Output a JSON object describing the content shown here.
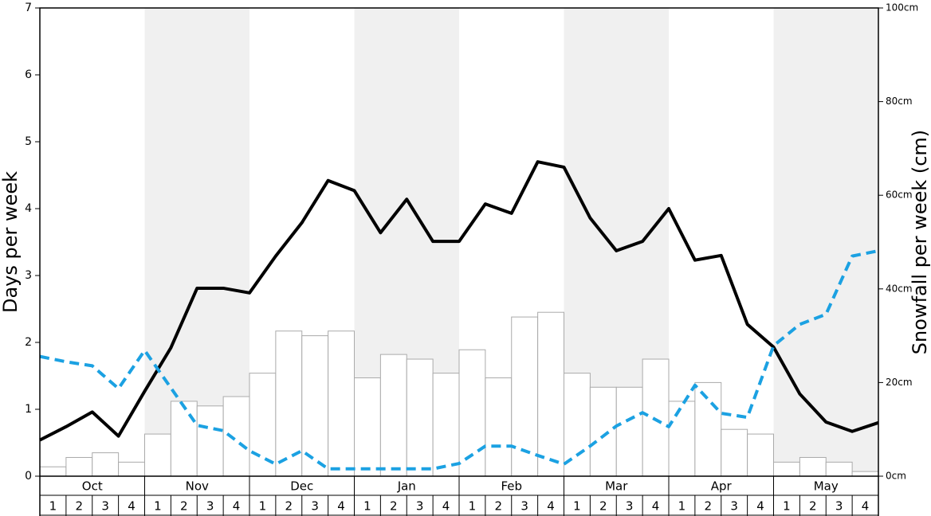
{
  "chart_data": {
    "type": "combo",
    "ylabel": "Days per week",
    "y2label": "Snowfall per week (cm)",
    "xlim": [
      0,
      32
    ],
    "ylim": [
      0,
      7
    ],
    "yticks": [
      0,
      1,
      2,
      3,
      4,
      5,
      6,
      7
    ],
    "y2lim": [
      0,
      100
    ],
    "y2ticks": [
      {
        "value": 0,
        "label": "0cm"
      },
      {
        "value": 20,
        "label": "20cm"
      },
      {
        "value": 40,
        "label": "40cm"
      },
      {
        "value": 60,
        "label": "60cm"
      },
      {
        "value": 80,
        "label": "80cm"
      },
      {
        "value": 100,
        "label": "100cm"
      }
    ],
    "months": [
      "Oct",
      "Nov",
      "Dec",
      "Jan",
      "Feb",
      "Mar",
      "Apr",
      "May"
    ],
    "shaded": [
      false,
      true,
      false,
      true,
      false,
      true,
      false,
      true
    ],
    "shade_color": "#f0f0f0",
    "categories": [
      "1",
      "2",
      "3",
      "4",
      "1",
      "2",
      "3",
      "4",
      "1",
      "2",
      "3",
      "4",
      "1",
      "2",
      "3",
      "4",
      "1",
      "2",
      "3",
      "4",
      "1",
      "2",
      "3",
      "4",
      "1",
      "2",
      "3",
      "4",
      "1",
      "2",
      "3",
      "4"
    ],
    "x": [
      0,
      1,
      2,
      3,
      4,
      5,
      6,
      7,
      8,
      9,
      10,
      11,
      12,
      13,
      14,
      15,
      16,
      17,
      18,
      19,
      20,
      21,
      22,
      23,
      24,
      25,
      26,
      27,
      28,
      29,
      30,
      31,
      32
    ],
    "series": [
      {
        "type": "bar",
        "axis": "y2",
        "color": "#ffffff",
        "stroke": "#aaaaaa",
        "values": [
          2,
          4,
          5,
          3,
          9,
          16,
          15,
          17,
          22,
          31,
          30,
          31,
          21,
          26,
          25,
          22,
          27,
          21,
          34,
          35,
          22,
          19,
          19,
          25,
          16,
          20,
          10,
          9,
          3,
          4,
          3,
          1
        ]
      },
      {
        "type": "line",
        "color": "#000000",
        "dashed": false,
        "values": [
          0.54,
          0.74,
          0.96,
          0.6,
          1.27,
          1.92,
          2.81,
          2.81,
          2.74,
          3.29,
          3.79,
          4.42,
          4.27,
          3.64,
          4.14,
          3.51,
          3.51,
          4.07,
          3.93,
          4.7,
          4.62,
          3.86,
          3.37,
          3.51,
          4.0,
          3.23,
          3.3,
          2.27,
          1.93,
          1.23,
          0.81,
          0.67,
          0.8
        ]
      },
      {
        "type": "line",
        "color": "#1ba1e2",
        "dashed": true,
        "values": [
          1.79,
          1.71,
          1.65,
          1.31,
          1.88,
          1.32,
          0.76,
          0.68,
          0.38,
          0.18,
          0.38,
          0.11,
          0.11,
          0.11,
          0.11,
          0.11,
          0.19,
          0.45,
          0.45,
          0.31,
          0.18,
          0.45,
          0.75,
          0.95,
          0.74,
          1.36,
          0.94,
          0.88,
          1.95,
          2.27,
          2.42,
          3.29,
          3.37
        ]
      }
    ]
  }
}
